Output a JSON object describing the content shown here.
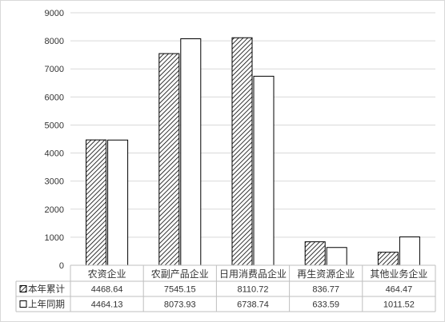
{
  "chart_data": {
    "type": "bar",
    "categories": [
      "农资企业",
      "农副产品企业",
      "日用消费品企业",
      "再生资源企业",
      "其他业务企业"
    ],
    "series": [
      {
        "name": "本年累计",
        "values": [
          4468.64,
          7545.15,
          8110.72,
          836.77,
          464.47
        ],
        "labels": [
          "4468.64",
          "7545.15",
          "8110.72",
          "836.77",
          "464.47"
        ],
        "pattern": "diagonal-hatch"
      },
      {
        "name": "上年同期",
        "values": [
          4464.13,
          8073.93,
          6738.74,
          633.59,
          1011.52
        ],
        "labels": [
          "4464.13",
          "8073.93",
          "6738.74",
          "633.59",
          "1011.52"
        ],
        "pattern": "white-fill"
      }
    ],
    "ylim": [
      0,
      9000
    ],
    "yticks": [
      "0",
      "1000",
      "2000",
      "3000",
      "4000",
      "5000",
      "6000",
      "7000",
      "8000",
      "9000"
    ],
    "grid": true,
    "legend": "data-table-left",
    "colors": {
      "bar_stroke": "#000000",
      "grid": "#d9d9d9",
      "text": "#333333"
    }
  }
}
